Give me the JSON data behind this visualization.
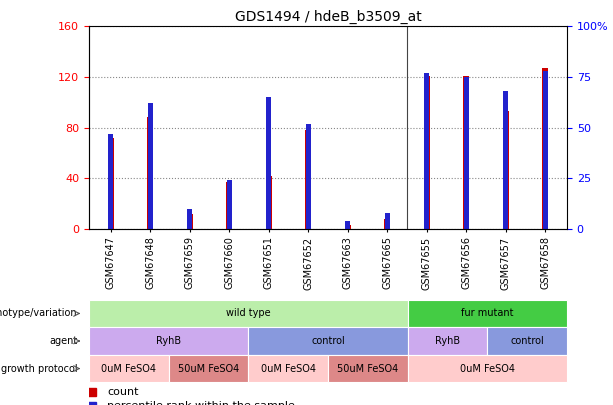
{
  "title": "GDS1494 / hdeB_b3509_at",
  "samples": [
    "GSM67647",
    "GSM67648",
    "GSM67659",
    "GSM67660",
    "GSM67651",
    "GSM67652",
    "GSM67663",
    "GSM67665",
    "GSM67655",
    "GSM67656",
    "GSM67657",
    "GSM67658"
  ],
  "counts": [
    72,
    88,
    12,
    37,
    42,
    78,
    3,
    8,
    121,
    121,
    93,
    127
  ],
  "percentiles": [
    47,
    62,
    10,
    24,
    65,
    52,
    4,
    8,
    77,
    75,
    68,
    78
  ],
  "left_ylim": [
    0,
    160
  ],
  "right_ylim": [
    0,
    100
  ],
  "left_yticks": [
    0,
    40,
    80,
    120,
    160
  ],
  "right_yticks": [
    0,
    25,
    50,
    75,
    100
  ],
  "right_yticklabels": [
    "0",
    "25",
    "50",
    "75",
    "100%"
  ],
  "bar_color": "#cc0000",
  "percentile_color": "#2222cc",
  "red_bar_width": 0.15,
  "blue_bar_width": 0.12,
  "genotype_row": {
    "label": "genotype/variation",
    "groups": [
      {
        "text": "wild type",
        "start": 0,
        "end": 8,
        "color": "#bbeeaa"
      },
      {
        "text": "fur mutant",
        "start": 8,
        "end": 12,
        "color": "#44cc44"
      }
    ]
  },
  "agent_row": {
    "label": "agent",
    "groups": [
      {
        "text": "RyhB",
        "start": 0,
        "end": 4,
        "color": "#ccaaee"
      },
      {
        "text": "control",
        "start": 4,
        "end": 8,
        "color": "#8899dd"
      },
      {
        "text": "RyhB",
        "start": 8,
        "end": 10,
        "color": "#ccaaee"
      },
      {
        "text": "control",
        "start": 10,
        "end": 12,
        "color": "#8899dd"
      }
    ]
  },
  "growth_row": {
    "label": "growth protocol",
    "groups": [
      {
        "text": "0uM FeSO4",
        "start": 0,
        "end": 2,
        "color": "#ffcccc"
      },
      {
        "text": "50uM FeSO4",
        "start": 2,
        "end": 4,
        "color": "#dd8888"
      },
      {
        "text": "0uM FeSO4",
        "start": 4,
        "end": 6,
        "color": "#ffcccc"
      },
      {
        "text": "50uM FeSO4",
        "start": 6,
        "end": 8,
        "color": "#dd8888"
      },
      {
        "text": "0uM FeSO4",
        "start": 8,
        "end": 12,
        "color": "#ffcccc"
      }
    ]
  },
  "legend_count_color": "#cc0000",
  "legend_percentile_color": "#2222cc",
  "background_color": "#ffffff",
  "grid_color": "#888888"
}
